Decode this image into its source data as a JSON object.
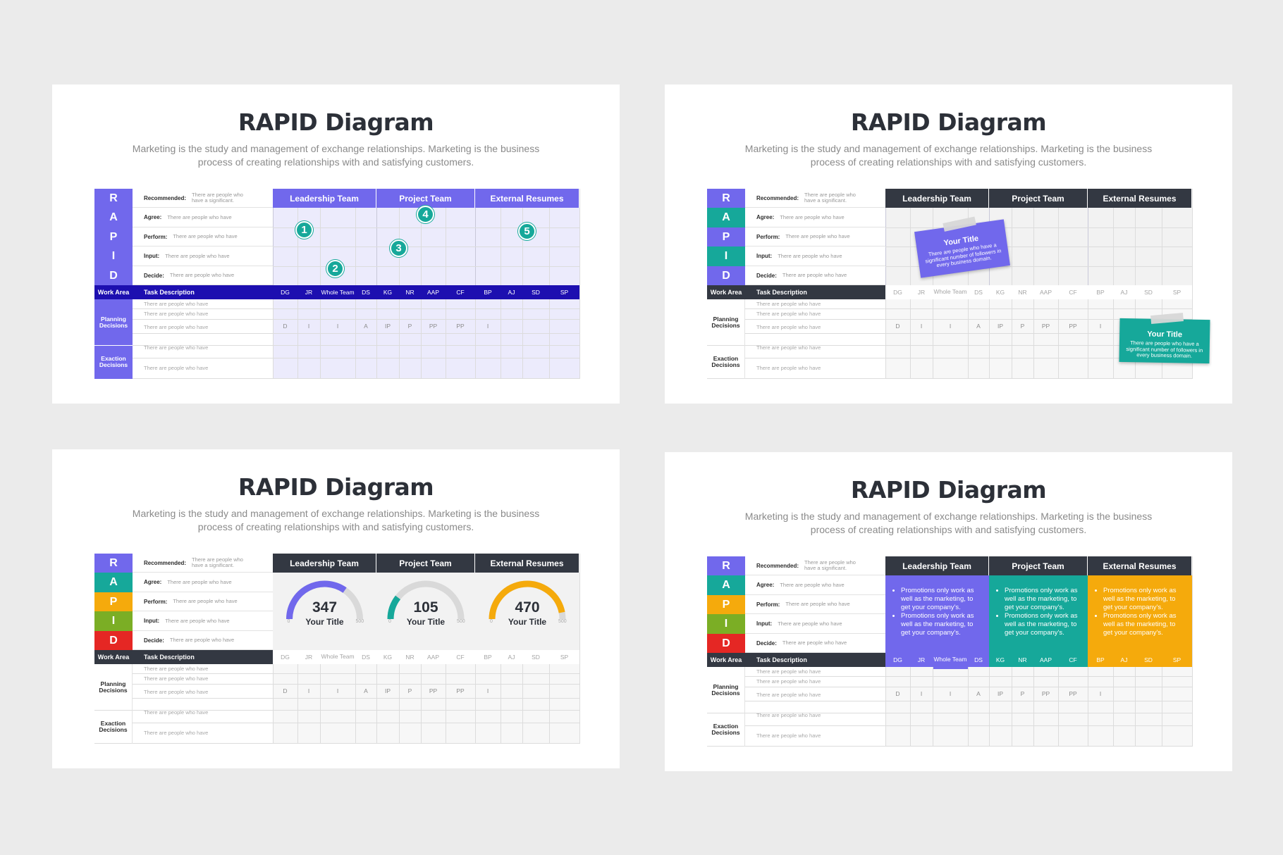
{
  "slides": [
    {
      "title": "RAPID Diagram",
      "subtitle": "Marketing is the study and management of exchange relationships. Marketing is the business process of creating relationships with and satisfying customers."
    },
    {
      "title": "RAPID Diagram",
      "subtitle": "Marketing is the study and management of exchange relationships. Marketing is the business process of creating relationships with and satisfying customers.",
      "notes": [
        {
          "title": "Your Title",
          "text": "There are people who have a significant number of followers in every business domain."
        },
        {
          "title": "Your Title",
          "text": "There are people who have a significant number of followers in every business domain."
        }
      ]
    },
    {
      "title": "RAPID Diagram",
      "subtitle": "Marketing is the study and management of exchange relationships. Marketing is the business process of creating relationships with and satisfying customers.",
      "gauges": [
        {
          "value": "347",
          "title": "Your Title",
          "min": "0",
          "max": "500",
          "fraction": 0.694
        },
        {
          "value": "105",
          "title": "Your Title",
          "min": "0",
          "max": "500",
          "fraction": 0.21
        },
        {
          "value": "470",
          "title": "Your Title",
          "min": "0",
          "max": "500",
          "fraction": 0.94
        }
      ]
    },
    {
      "title": "RAPID Diagram",
      "subtitle": "Marketing is the study and management of exchange relationships. Marketing is the business process of creating relationships with and satisfying customers.",
      "panel_bullets": [
        "Promotions only work as well as the marketing, to get your company's.",
        "Promotions only work as well as the marketing, to get your company's."
      ]
    }
  ],
  "rapid": {
    "letters": [
      "R",
      "A",
      "P",
      "I",
      "D"
    ],
    "roles": [
      {
        "label": "Recommended:",
        "text": "There are people who have a significant."
      },
      {
        "label": "Agree:",
        "text": "There are people who have"
      },
      {
        "label": "Perform:",
        "text": "There are people who have"
      },
      {
        "label": "Input:",
        "text": "There are people who have"
      },
      {
        "label": "Decide:",
        "text": "There are people who have"
      }
    ],
    "teams": [
      "Leadership Team",
      "Project Team",
      "External Resumes"
    ],
    "members": [
      "DG",
      "JR",
      "Whole Team",
      "DS",
      "KG",
      "NR",
      "AAP",
      "CF",
      "BP",
      "AJ",
      "SD",
      "SP"
    ],
    "work_area": "Work Area",
    "task_description": "Task Description",
    "groups": [
      "Planning Decisions",
      "Exaction Decisions"
    ],
    "task_text": "There are people who have",
    "assignment_row": [
      "D",
      "I",
      "I",
      "A",
      "IP",
      "P",
      "PP",
      "PP",
      "I",
      "",
      "",
      ""
    ],
    "bubbles": [
      "1",
      "2",
      "3",
      "4",
      "5"
    ]
  },
  "colors": {
    "purple": "#7168ec",
    "navy": "#1d0fb0",
    "dark": "#333842",
    "teal": "#16a89a",
    "yellow": "#f5aa0c",
    "green": "#7bae25",
    "red": "#e52724",
    "light_grid": "#ecebfc",
    "grey_grid": "#f2f2f2"
  }
}
